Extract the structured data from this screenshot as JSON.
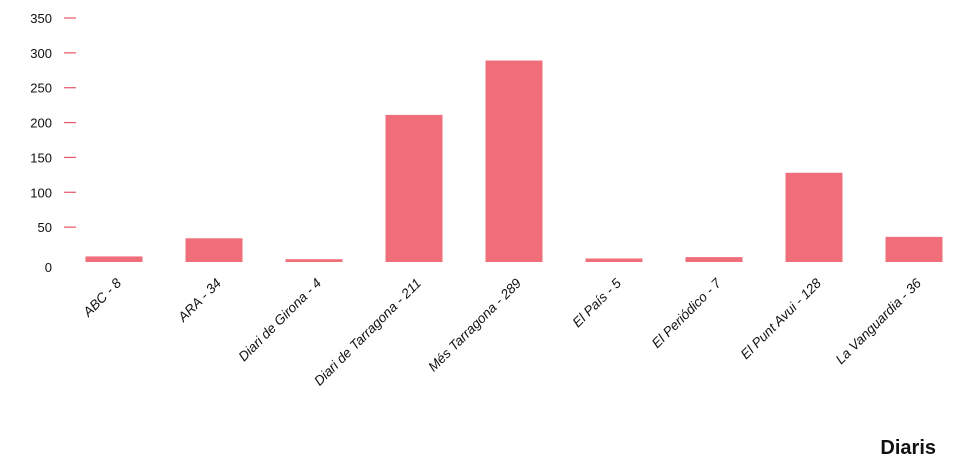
{
  "chart_data": {
    "type": "bar",
    "categories": [
      "ABC - 8",
      "ARA - 34",
      "Diari de Girona - 4",
      "Diari de Tarragona - 211",
      "Més Tarragona - 289",
      "El País - 5",
      "El Periódico - 7",
      "El Punt Avui - 128",
      "La Vanguardia - 36"
    ],
    "values": [
      8,
      34,
      4,
      211,
      289,
      5,
      7,
      128,
      36
    ],
    "xlabel": "Diaris",
    "ylabel": "",
    "ylim": [
      0,
      350
    ],
    "yticks": [
      0,
      50,
      100,
      150,
      200,
      250,
      300,
      350
    ],
    "grid": false,
    "bar_color": "#ef6e7a",
    "tick_color": "#e8566a"
  }
}
